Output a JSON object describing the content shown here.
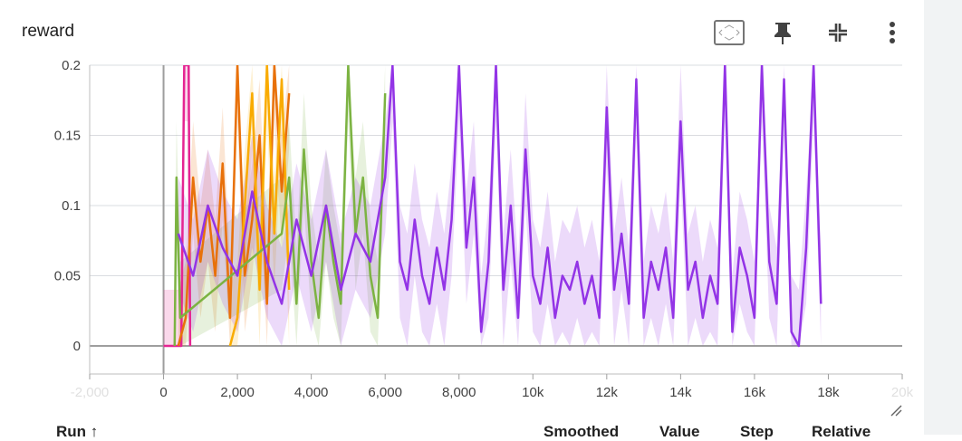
{
  "card": {
    "title": "reward"
  },
  "toolbar": {
    "icons": [
      "fit-to-data-icon",
      "pin-icon",
      "collapse-icon",
      "more-vert-icon"
    ]
  },
  "table": {
    "columns": [
      "Run ↑",
      "Smoothed",
      "Value",
      "Step",
      "Relative"
    ]
  },
  "colors": {
    "grid": "#dadce0",
    "axis": "#9e9e9e",
    "pink": "#e52592",
    "orange": "#e8710a",
    "amber": "#f9ab00",
    "green": "#7cb342",
    "purple": "#9334e6"
  },
  "chart_data": {
    "type": "line",
    "title": "reward",
    "xlabel": "",
    "ylabel": "",
    "xlim": [
      -2000,
      20000
    ],
    "ylim": [
      -0.02,
      0.2
    ],
    "x_ticks": [
      -2000,
      0,
      2000,
      4000,
      6000,
      8000,
      10000,
      12000,
      14000,
      16000,
      18000,
      20000
    ],
    "x_tick_labels": [
      "-2,000",
      "0",
      "2,000",
      "4,000",
      "6,000",
      "8,000",
      "10k",
      "12k",
      "14k",
      "16k",
      "18k",
      "20k"
    ],
    "y_ticks": [
      0,
      0.05,
      0.1,
      0.15,
      0.2
    ],
    "y_tick_labels": [
      "0",
      "0.05",
      "0.1",
      "0.15",
      "0.2"
    ],
    "grid": true,
    "series": [
      {
        "color": "#e52592",
        "x": [
          0,
          250,
          480,
          560,
          620,
          680,
          720
        ],
        "y": [
          0,
          0,
          0,
          0.2,
          0.2,
          0.2,
          0
        ]
      },
      {
        "color": "#e8710a",
        "x": [
          400,
          600,
          800,
          1000,
          1200,
          1400,
          1600,
          1800,
          2000,
          2200,
          2400,
          2600,
          2800,
          3000,
          3200,
          3400
        ],
        "y": [
          0,
          0.02,
          0.12,
          0.06,
          0.1,
          0.05,
          0.13,
          0.02,
          0.2,
          0.05,
          0.09,
          0.15,
          0.03,
          0.2,
          0.11,
          0.18
        ]
      },
      {
        "color": "#f9ab00",
        "x": [
          1800,
          2000,
          2200,
          2400,
          2600,
          2800,
          3000,
          3200,
          3400
        ],
        "y": [
          0,
          0.02,
          0.1,
          0.18,
          0.04,
          0.2,
          0.08,
          0.19,
          0.04
        ]
      },
      {
        "color": "#7cb342",
        "x": [
          300,
          350,
          450,
          3200,
          3400,
          3600,
          3800,
          4000,
          4200,
          4400,
          4600,
          4800,
          5000,
          5200,
          5400,
          5600,
          5800,
          6000
        ],
        "y": [
          0,
          0.12,
          0.02,
          0.08,
          0.12,
          0.03,
          0.14,
          0.06,
          0.02,
          0.1,
          0.06,
          0.03,
          0.2,
          0.08,
          0.12,
          0.05,
          0.02,
          0.18
        ]
      },
      {
        "color": "#9334e6",
        "x": [
          400,
          800,
          1200,
          1600,
          2000,
          2400,
          2800,
          3200,
          3600,
          4000,
          4400,
          4800,
          5200,
          5600,
          6000,
          6200,
          6400,
          6600,
          6800,
          7000,
          7200,
          7400,
          7600,
          7800,
          8000,
          8200,
          8400,
          8600,
          8800,
          9000,
          9200,
          9400,
          9600,
          9800,
          10000,
          10200,
          10400,
          10600,
          10800,
          11000,
          11200,
          11400,
          11600,
          11800,
          12000,
          12200,
          12400,
          12600,
          12800,
          13000,
          13200,
          13400,
          13600,
          13800,
          14000,
          14200,
          14400,
          14600,
          14800,
          15000,
          15200,
          15400,
          15600,
          15800,
          16000,
          16200,
          16400,
          16600,
          16800,
          17000,
          17200,
          17400,
          17600,
          17800
        ],
        "y": [
          0.08,
          0.05,
          0.1,
          0.07,
          0.05,
          0.11,
          0.06,
          0.03,
          0.09,
          0.05,
          0.1,
          0.04,
          0.08,
          0.06,
          0.12,
          0.2,
          0.06,
          0.04,
          0.09,
          0.05,
          0.03,
          0.07,
          0.04,
          0.09,
          0.2,
          0.07,
          0.12,
          0.01,
          0.06,
          0.2,
          0.04,
          0.1,
          0.02,
          0.14,
          0.05,
          0.03,
          0.07,
          0.02,
          0.05,
          0.04,
          0.06,
          0.03,
          0.05,
          0.02,
          0.17,
          0.04,
          0.08,
          0.03,
          0.19,
          0.02,
          0.06,
          0.04,
          0.07,
          0.02,
          0.16,
          0.04,
          0.06,
          0.02,
          0.05,
          0.03,
          0.2,
          0.01,
          0.07,
          0.05,
          0.02,
          0.2,
          0.06,
          0.03,
          0.19,
          0.01,
          0.0,
          0.07,
          0.2,
          0.03
        ]
      }
    ]
  }
}
